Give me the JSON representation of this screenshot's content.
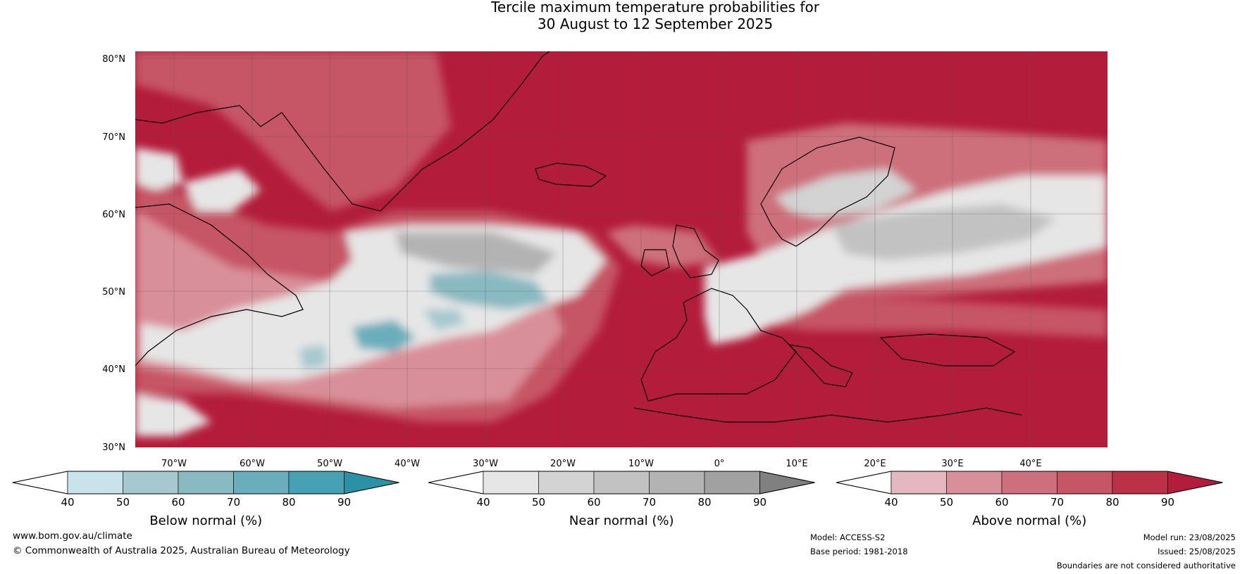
{
  "title_line1": "Tercile maximum temperature probabilities for",
  "title_line2": "30 August to 12 September 2025",
  "latitude_labels": [
    "80°N",
    "70°N",
    "60°N",
    "50°N",
    "40°N",
    "30°N"
  ],
  "longitude_labels": [
    "70°W",
    "60°W",
    "50°W",
    "40°W",
    "30°W",
    "20°W",
    "10°W",
    "0°",
    "10°E",
    "20°E",
    "30°E",
    "40°E"
  ],
  "colorbars": [
    {
      "name": "below",
      "title": "Below normal (%)",
      "ticks": [
        "40",
        "50",
        "60",
        "70",
        "80",
        "90"
      ],
      "colors": [
        "#ffffff",
        "#c9e3ea",
        "#a6c9cf",
        "#89b9c1",
        "#6aaebb",
        "#46a2b3",
        "#2b91a4"
      ]
    },
    {
      "name": "near",
      "title": "Near normal (%)",
      "ticks": [
        "40",
        "50",
        "60",
        "70",
        "80",
        "90"
      ],
      "colors": [
        "#ffffff",
        "#e6e6e6",
        "#d3d3d3",
        "#c2c2c2",
        "#b3b3b3",
        "#a1a1a1",
        "#808080"
      ]
    },
    {
      "name": "above",
      "title": "Above normal (%)",
      "ticks": [
        "40",
        "50",
        "60",
        "70",
        "80",
        "90"
      ],
      "colors": [
        "#ffffff",
        "#e5b8bf",
        "#d98f99",
        "#cd6f7c",
        "#c65565",
        "#bb3247",
        "#b31c3a"
      ]
    }
  ],
  "footer": {
    "website": "www.bom.gov.au/climate",
    "copyright": "© Commonwealth of Australia 2025, Australian Bureau of Meteorology",
    "model": "Model: ACCESS-S2",
    "base_period": "Base period: 1981-2018",
    "model_run": "Model run: 23/08/2025",
    "issued": "Issued: 25/08/2025",
    "disclaimer": "Boundaries are not considered authoritative"
  }
}
